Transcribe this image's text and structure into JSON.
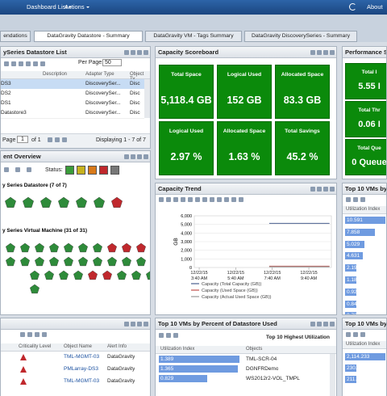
{
  "header": {
    "menus": [
      "Dashboard List",
      "Actions"
    ],
    "about": "About"
  },
  "tabs": [
    "endations",
    "DataGravity Datastore - Summary",
    "DataGravity VM - Tags Summary",
    "DataGravity DiscoverySeries - Summary"
  ],
  "datastore_list": {
    "title": "ySeries Datastore List",
    "per_page_label": "Per Page:",
    "per_page": 50,
    "columns": [
      "Description",
      "Adapter Type",
      "Object Ty"
    ],
    "rows": [
      {
        "name": "DS3",
        "adapter": "DiscoverySer...",
        "type": "Disc"
      },
      {
        "name": "DS2",
        "adapter": "DiscoverySer...",
        "type": "Disc"
      },
      {
        "name": "DS1",
        "adapter": "DiscoverySer...",
        "type": "Disc"
      },
      {
        "name": "Datastore3",
        "adapter": "DiscoverySer...",
        "type": "Disc"
      }
    ],
    "page_label": "Page",
    "page": 1,
    "of_label": "of 1",
    "displaying": "Displaying 1 - 7 of 7"
  },
  "overview": {
    "title": "ent Overview",
    "status_label": "Status:",
    "groups": [
      {
        "label": "y Series Datastore (7 of 7)",
        "statuses": [
          "ok",
          "ok",
          "ok",
          "ok",
          "ok",
          "ok",
          "critical"
        ]
      },
      {
        "label": "y Series Virtual Machine (31 of 31)",
        "statuses": [
          "ok",
          "ok",
          "ok",
          "ok",
          "ok",
          "ok",
          "ok",
          "critical",
          "critical",
          "critical",
          "ok",
          "ok",
          "ok",
          "ok",
          "ok",
          "ok",
          "ok",
          "ok",
          "ok",
          "ok",
          "ok",
          "ok",
          "ok",
          "ok",
          "critical",
          "critical",
          "ok",
          "ok",
          "ok",
          "ok",
          "ok"
        ]
      }
    ]
  },
  "alerts": {
    "columns": [
      "Criticality Level",
      "Object Name",
      "Alert Info"
    ],
    "rows": [
      {
        "object": "TML-MGMT-03",
        "info": "DataGravity"
      },
      {
        "object": "PMLarray-DS3",
        "info": "DataGravity"
      },
      {
        "object": "TML-MGMT-03",
        "info": "DataGravity"
      }
    ]
  },
  "scoreboard": {
    "title": "Capacity Scoreboard",
    "tiles": [
      {
        "label": "Total Space",
        "value": "5,118.4 GB"
      },
      {
        "label": "Logical Used",
        "value": "152 GB"
      },
      {
        "label": "Allocated Space",
        "value": "83.3 GB"
      },
      {
        "label": "Logical Used",
        "value": "2.97 %"
      },
      {
        "label": "Allocated Space",
        "value": "1.63 %"
      },
      {
        "label": "Total Savings",
        "value": "45.2 %"
      }
    ]
  },
  "capacity_trend": {
    "type": "line",
    "title": "Capacity Trend",
    "ylabel": "GB",
    "ylim": [
      0,
      6000
    ],
    "yticks": [
      0,
      {
        "value": 1000,
        "label": "1,000"
      },
      {
        "value": 2000,
        "label": "2,000"
      },
      {
        "value": 3000,
        "label": "3,000"
      },
      {
        "value": 4000,
        "label": "4,000"
      },
      {
        "value": 5000,
        "label": "5,000"
      },
      {
        "value": 6000,
        "label": "6,000"
      }
    ],
    "xlim": [
      3.4,
      10.9
    ],
    "xticks": [
      {
        "value": 3.667,
        "label": "12/22/15 3:40 AM"
      },
      {
        "value": 5.667,
        "label": "12/22/15 5:40 AM"
      },
      {
        "value": 7.667,
        "label": "12/22/15 7:40 AM"
      },
      {
        "value": 9.667,
        "label": "12/22/15 9:40 AM"
      }
    ],
    "grid": true,
    "series": [
      {
        "name": "Capacity (Total Capacity (GB))",
        "color": "#4a5f8f",
        "x": [
          7.5,
          10.8
        ],
        "values": [
          5118.4,
          5118.4
        ]
      },
      {
        "name": "Capacity (Used Space (GB))",
        "color": "#c0504d",
        "x": [
          7.5,
          10.8
        ],
        "values": [
          152,
          152
        ]
      },
      {
        "name": "Capacity (Actual Used Space (GB))",
        "color": "#999999",
        "x": [
          7.5,
          10.8
        ],
        "values": [
          83.3,
          83.3
        ]
      }
    ]
  },
  "top_vms_percent": {
    "title": "Top 10 VMs by Percent of Datastore Used",
    "subtitle": "Top 10 Highest Utilization",
    "columns": [
      "Utilization Index",
      "Objects"
    ],
    "values": [
      1.389,
      1.365,
      0.829
    ],
    "objects": [
      "TML-SCR-04",
      "DGNFRDemo",
      "WS2012r2-VOL_TMPL"
    ]
  },
  "performance": {
    "title": "Performance Sc",
    "tiles": [
      {
        "label": "Total I",
        "value": "5.55 I"
      },
      {
        "label": "Total Thr",
        "value": "0.06 I"
      },
      {
        "label": "Total Que",
        "value": "0 Queue"
      }
    ]
  },
  "top_vms_latency": {
    "title": "Top 10 VMs by La",
    "column": "Utilization Index",
    "values": [
      10.591,
      7.858,
      5.029,
      4.631,
      2.192,
      1.184,
      0.929,
      0.846,
      0.735
    ]
  },
  "top_vms_k": {
    "title": "Top 10 VMs by K",
    "column": "Utilization Index",
    "values": [
      2114.233,
      230.95,
      211.417
    ],
    "value_labels": [
      "2,114.233",
      "230.95",
      "211.417"
    ]
  }
}
